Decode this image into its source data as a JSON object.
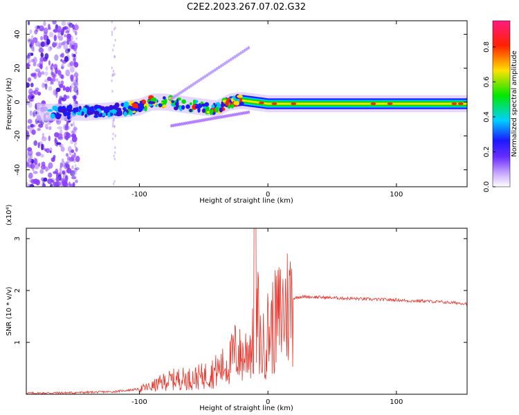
{
  "title": "C2E2.2023.267.07.02.G32",
  "colors": {
    "snr_line": "#e8332a",
    "axis": "#000000",
    "colorbar": [
      "#ffffff",
      "#7a2cff",
      "#1a1aff",
      "#00d0ff",
      "#00e800",
      "#ffe000",
      "#ff2200",
      "#ff1a80"
    ]
  },
  "chart_data": [
    {
      "type": "heatmap",
      "xlabel": "Height of straight line (km)",
      "ylabel": "Frequency (Hz)",
      "xlim": [
        -188,
        155
      ],
      "ylim": [
        -50,
        48
      ],
      "x_ticks": [
        -100,
        0,
        100
      ],
      "y_ticks": [
        -40,
        -20,
        0,
        20,
        40
      ],
      "colorbar": {
        "label": "Normalized spectral amplitude",
        "range": [
          0,
          0.95
        ],
        "ticks": [
          0.0,
          0.2,
          0.4,
          0.6,
          0.8
        ]
      },
      "ridge": {
        "description_points_x": [
          -185,
          -160,
          -140,
          -120,
          -100,
          -90,
          -80,
          -70,
          -60,
          -50,
          -40,
          -30,
          -20,
          -10,
          0,
          20,
          40,
          60,
          80,
          100,
          120,
          140,
          155
        ],
        "frequency_hz": [
          -6,
          -6,
          -6,
          -5,
          -3,
          0,
          0,
          -1,
          -2,
          -3,
          -4,
          0,
          1,
          0,
          -1,
          -1,
          -1,
          -1,
          -1,
          -1,
          -1,
          -1,
          -1
        ]
      }
    },
    {
      "type": "line",
      "xlabel": "Height of straight line (km)",
      "ylabel": "SNR (10 * v/v)",
      "y_multiplier": "(x10⁴)",
      "xlim": [
        -188,
        155
      ],
      "ylim": [
        0,
        3.2
      ],
      "x_ticks": [
        -100,
        0,
        100
      ],
      "y_ticks": [
        1,
        2,
        3
      ],
      "series": [
        {
          "x": [
            -188,
            -150,
            -120,
            -100,
            -90,
            -80,
            -70,
            -60,
            -50,
            -40,
            -30,
            -25,
            -20,
            -15,
            -10,
            -8,
            -5,
            0,
            5,
            10,
            15,
            20,
            25,
            30,
            40,
            60,
            80,
            100,
            110,
            120,
            140,
            155
          ],
          "y": [
            0.02,
            0.03,
            0.05,
            0.1,
            0.15,
            0.25,
            0.3,
            0.3,
            0.35,
            0.45,
            0.6,
            0.85,
            0.7,
            0.9,
            1.0,
            1.5,
            0.8,
            1.2,
            1.35,
            1.55,
            1.7,
            1.85,
            1.88,
            1.88,
            1.87,
            1.85,
            1.83,
            1.82,
            1.8,
            1.8,
            1.77,
            1.75
          ]
        }
      ]
    }
  ]
}
